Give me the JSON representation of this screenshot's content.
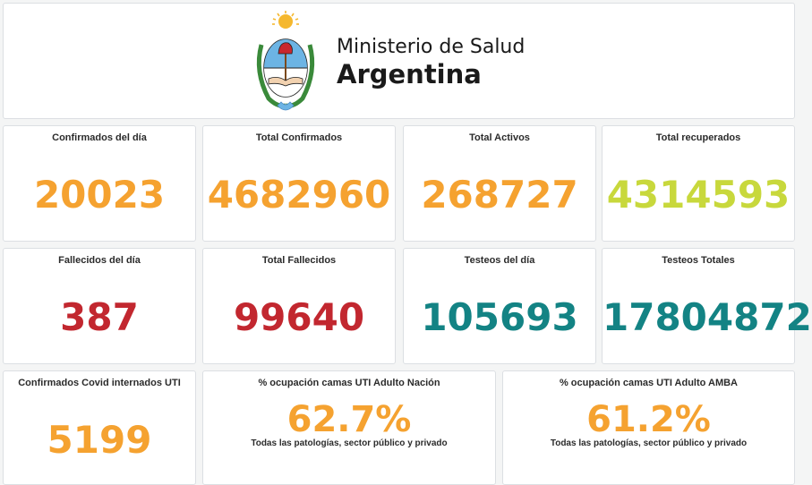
{
  "header": {
    "ministry_line1": "Ministerio de Salud",
    "ministry_line2": "Argentina",
    "emblem_icon": "argentina-coat-of-arms-icon"
  },
  "colors": {
    "orange": "#f5a230",
    "yellow_green": "#c8d83c",
    "red": "#c2272f",
    "teal": "#138384"
  },
  "stats": {
    "confirmados_dia": {
      "label": "Confirmados del día",
      "value": "20023"
    },
    "total_confirmados": {
      "label": "Total Confirmados",
      "value": "4682960"
    },
    "total_activos": {
      "label": "Total Activos",
      "value": "268727"
    },
    "total_recuperados": {
      "label": "Total recuperados",
      "value": "4314593"
    },
    "fallecidos_dia": {
      "label": "Fallecidos del día",
      "value": "387"
    },
    "total_fallecidos": {
      "label": "Total Fallecidos",
      "value": "99640"
    },
    "testeos_dia": {
      "label": "Testeos del día",
      "value": "105693"
    },
    "testeos_totales": {
      "label": "Testeos Totales",
      "value": "17804872"
    },
    "internados_uti": {
      "label": "Confirmados Covid internados UTI",
      "value": "5199"
    },
    "ocupacion_nacion": {
      "label": "% ocupación camas UTI Adulto Nación",
      "value": "62.7%",
      "sub": "Todas las patologías, sector público y privado"
    },
    "ocupacion_amba": {
      "label": "% ocupación camas UTI Adulto AMBA",
      "value": "61.2%",
      "sub": "Todas las patologías, sector público y privado"
    }
  }
}
